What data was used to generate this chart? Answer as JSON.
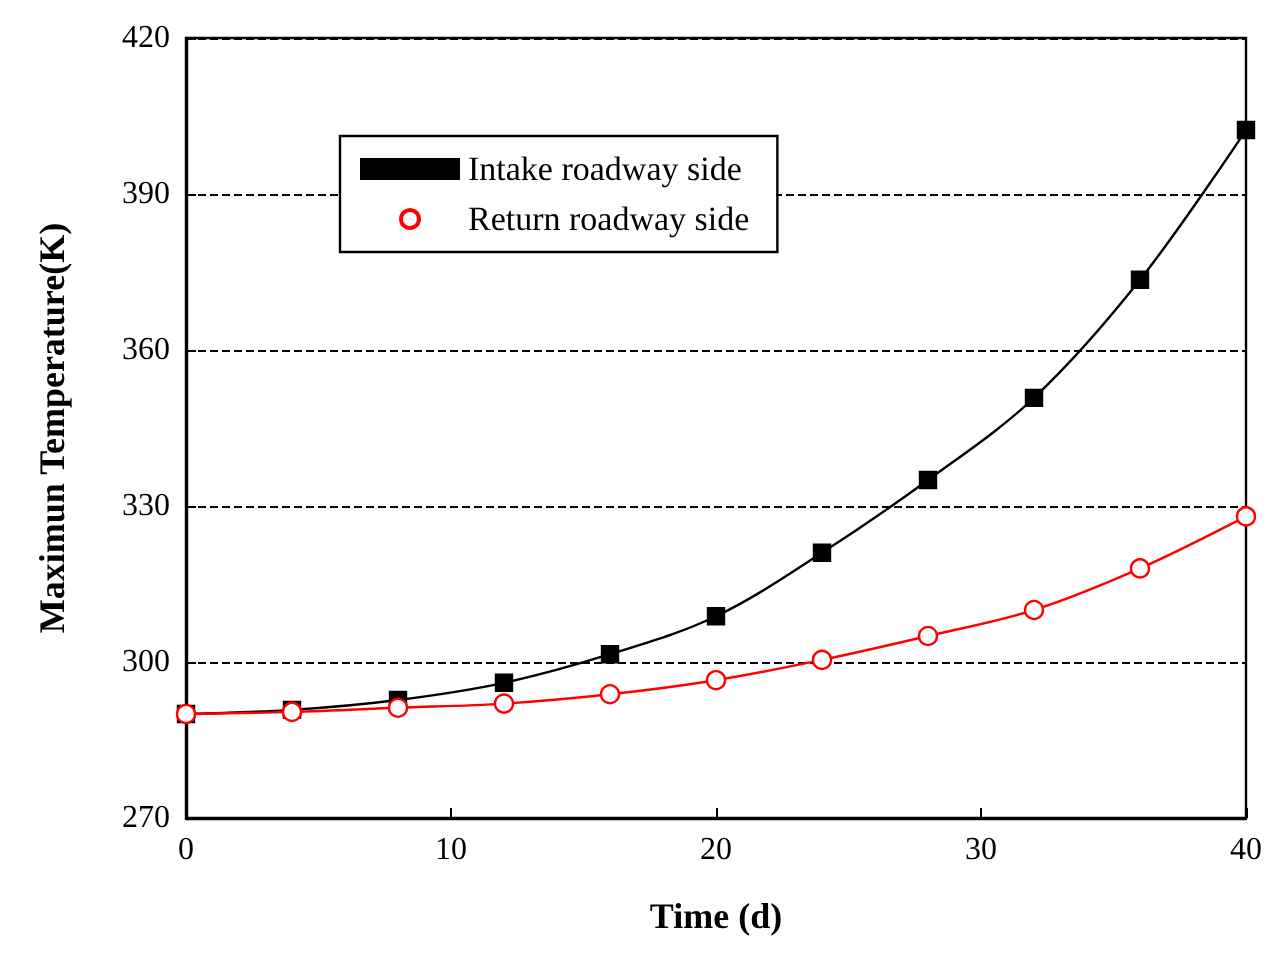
{
  "chart_data": {
    "type": "line",
    "xlabel": "Time (d)",
    "ylabel": "Maximun Temperature(K)",
    "x": [
      0,
      4,
      8,
      12,
      16,
      20,
      24,
      28,
      32,
      36,
      40
    ],
    "series": [
      {
        "name": "Intake roadway side",
        "color": "#000000",
        "marker": "square",
        "values": [
          290,
          290.8,
          292.7,
          296,
          301.5,
          308.8,
          321,
          335,
          350.8,
          373.5,
          402.3
        ]
      },
      {
        "name": "Return roadway side",
        "color": "#ff0000",
        "marker": "circle",
        "values": [
          290,
          290.4,
          291.2,
          292,
          293.8,
          296.5,
          300.4,
          305,
          310,
          318,
          328
        ]
      }
    ],
    "xlim": [
      0,
      40
    ],
    "xticks": [
      0,
      10,
      20,
      30,
      40
    ],
    "ylim": [
      270,
      420
    ],
    "yticks": [
      270,
      300,
      330,
      360,
      390,
      420
    ],
    "grid": "y",
    "legend": "top left"
  }
}
